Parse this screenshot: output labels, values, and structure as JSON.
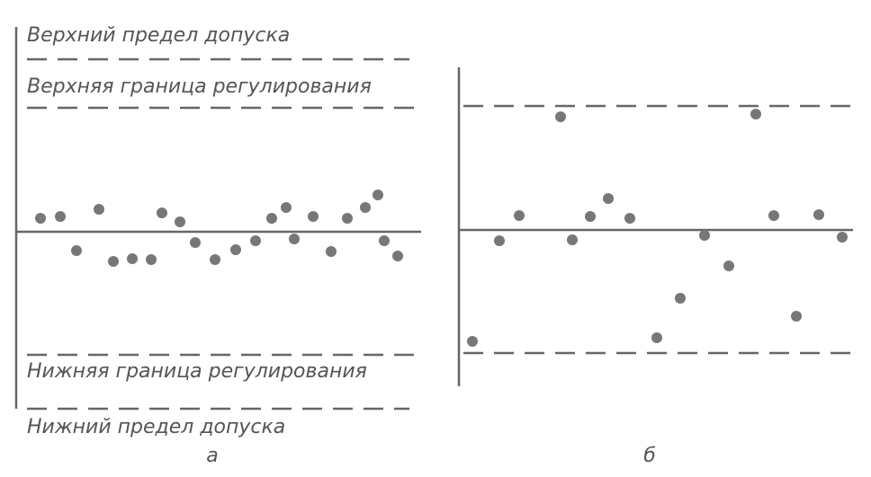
{
  "panel_a": {
    "upper_tolerance_label": "Верхний предел допуска",
    "upper_control_label": "Верхняя граница регулирования",
    "lower_control_label": "Нижняя граница регулирования",
    "lower_tolerance_label": "Нижний предел допуска",
    "caption": "а"
  },
  "panel_b": {
    "caption": "б"
  }
}
